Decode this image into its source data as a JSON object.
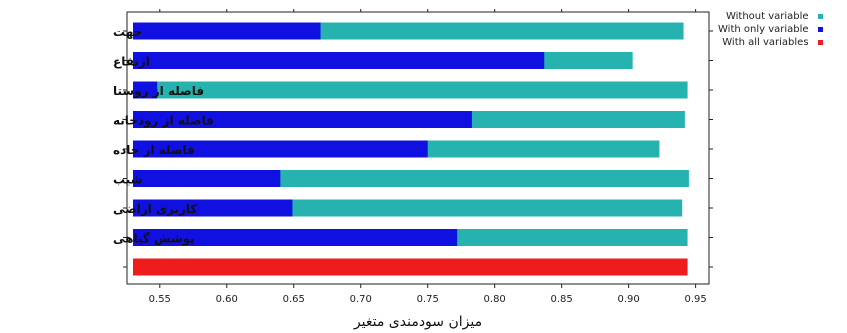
{
  "chart_data": {
    "type": "bar",
    "orientation": "horizontal",
    "categories": [
      "جهت",
      "ارتفاع",
      "فاصله از روستا",
      "فاصله از رودخانه",
      "فاصله از جاده",
      "شیب",
      "کاربری اراضی",
      "پوشش گیاهی",
      ""
    ],
    "series": [
      {
        "name": "Without variable",
        "color": "#26b3b0",
        "values": [
          0.941,
          0.903,
          0.944,
          0.942,
          0.923,
          0.945,
          0.94,
          0.944,
          null
        ]
      },
      {
        "name": "With only variable",
        "color": "#1010e0",
        "values": [
          0.67,
          0.837,
          0.548,
          0.783,
          0.75,
          0.64,
          0.649,
          0.772,
          null
        ]
      },
      {
        "name": "With all variables",
        "color": "#ee1c1c",
        "values": [
          null,
          null,
          null,
          null,
          null,
          null,
          null,
          null,
          0.944
        ]
      }
    ],
    "xlim": [
      0.53,
      0.96
    ],
    "xticks": [
      "0.55",
      "0.60",
      "0.65",
      "0.70",
      "0.75",
      "0.80",
      "0.85",
      "0.90",
      "0.95"
    ],
    "xlabel": "میزان سودمندی متغیر",
    "ylabel": "",
    "grid": false,
    "legend_position": "top-right"
  }
}
